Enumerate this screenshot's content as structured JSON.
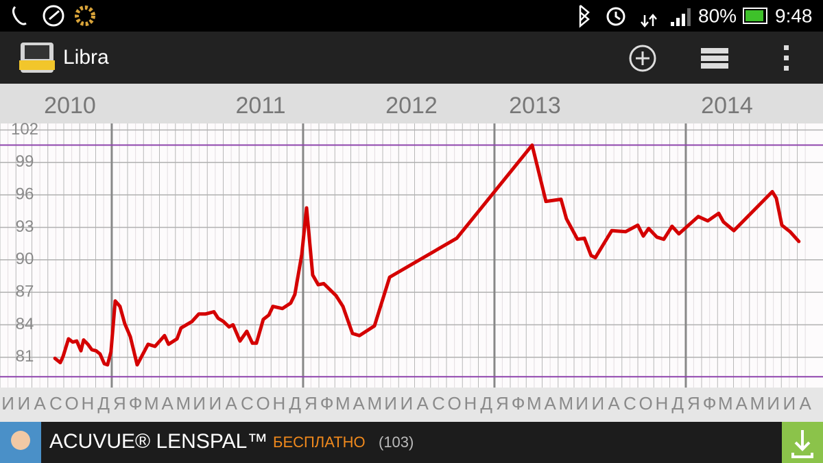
{
  "status_bar": {
    "battery": "80%",
    "time": "9:48"
  },
  "app_bar": {
    "title": "Libra"
  },
  "chart_data": {
    "type": "line",
    "color": "#d40000",
    "grid": true,
    "xlim": [
      2010.416,
      2014.717
    ],
    "xticks": [
      2010,
      2011,
      2012,
      2013,
      2014
    ],
    "ylim": [
      78.2,
      102.6
    ],
    "yticks": [
      81,
      84,
      87,
      90,
      93,
      96,
      99,
      102
    ],
    "reference_lines": [
      100.6,
      79.2
    ],
    "reference_color": "#8e44ad",
    "month_labels": [
      "И",
      "И",
      "А",
      "С",
      "О",
      "Н",
      "Д",
      "Я",
      "Ф",
      "М",
      "А",
      "М",
      "И",
      "И",
      "А",
      "С",
      "О",
      "Н",
      "Д",
      "Я",
      "Ф",
      "М",
      "А",
      "М",
      "И",
      "И",
      "А",
      "С",
      "О",
      "Н",
      "Д",
      "Я",
      "Ф",
      "М",
      "А",
      "М",
      "И",
      "И",
      "А",
      "С",
      "О",
      "Н",
      "Д",
      "Я",
      "Ф",
      "М",
      "А",
      "М",
      "И",
      "И",
      "А"
    ],
    "x": [
      2010.703,
      2010.731,
      2010.746,
      2010.774,
      2010.796,
      2010.817,
      2010.839,
      2010.853,
      2010.875,
      2010.896,
      2010.918,
      2010.939,
      2010.961,
      2010.978,
      2010.996,
      2011.018,
      2011.043,
      2011.068,
      2011.097,
      2011.133,
      2011.19,
      2011.226,
      2011.276,
      2011.297,
      2011.341,
      2011.362,
      2011.419,
      2011.455,
      2011.491,
      2011.534,
      2011.556,
      2011.584,
      2011.613,
      2011.634,
      2011.67,
      2011.706,
      2011.735,
      2011.756,
      2011.792,
      2011.821,
      2011.842,
      2011.892,
      2011.935,
      2011.957,
      2011.993,
      2012.018,
      2012.05,
      2012.079,
      2012.108,
      2012.172,
      2012.208,
      2012.258,
      2012.294,
      2012.373,
      2012.452,
      2012.803,
      2013.197,
      2013.269,
      2013.348,
      2013.376,
      2013.434,
      2013.47,
      2013.505,
      2013.527,
      2013.613,
      2013.685,
      2013.749,
      2013.778,
      2013.806,
      2013.849,
      2013.885,
      2013.928,
      2013.964,
      2014.065,
      2014.115,
      2014.172,
      2014.197,
      2014.251,
      2014.452,
      2014.473,
      2014.502,
      2014.545,
      2014.591
    ],
    "values": [
      80.9,
      80.5,
      81.1,
      82.7,
      82.4,
      82.5,
      81.6,
      82.6,
      82.2,
      81.7,
      81.6,
      81.3,
      80.4,
      80.3,
      81.5,
      86.2,
      85.7,
      84.1,
      82.9,
      80.3,
      82.2,
      82.0,
      83.0,
      82.2,
      82.7,
      83.7,
      84.3,
      85.0,
      85.0,
      85.2,
      84.6,
      84.3,
      83.8,
      84.0,
      82.5,
      83.4,
      82.3,
      82.3,
      84.5,
      84.9,
      85.7,
      85.5,
      86.0,
      86.8,
      90.5,
      94.8,
      88.6,
      87.7,
      87.8,
      86.7,
      85.7,
      83.2,
      83.0,
      83.9,
      88.4,
      92.0,
      100.6,
      95.4,
      95.6,
      93.8,
      91.9,
      92.0,
      90.4,
      90.2,
      92.7,
      92.6,
      93.2,
      92.2,
      92.9,
      92.1,
      91.9,
      93.1,
      92.4,
      94.0,
      93.6,
      94.3,
      93.5,
      92.7,
      96.3,
      95.7,
      93.2,
      92.6,
      91.7
    ]
  },
  "ad_banner": {
    "title": "ACUVUE® LENSPAL™",
    "price": "БЕСПЛАТНО",
    "rating_count": "(103)"
  }
}
